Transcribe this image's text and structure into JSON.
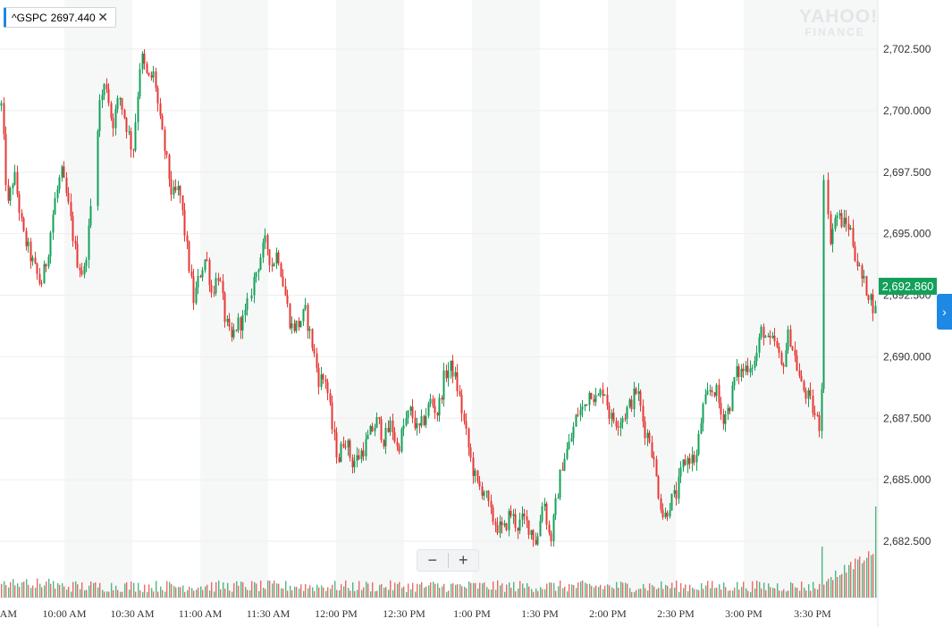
{
  "symbol": {
    "name": "^GSPC",
    "value": "2697.440",
    "close_glyph": "✕"
  },
  "watermark": {
    "line1": "YAHOO!",
    "line2": "FINANCE"
  },
  "current_price_label": "2,692.860",
  "side_button_glyph": "›",
  "zoom": {
    "minus": "−",
    "plus": "+"
  },
  "colors": {
    "up": "#14a05a",
    "down": "#e53935",
    "band": "#f6f7f7",
    "grid": "#eeeeee"
  },
  "chart_data": {
    "type": "candlestick",
    "ylim": [
      2681.1,
      2703.9
    ],
    "y_ticks": [
      {
        "v": 2702.5,
        "label": "2,702.500"
      },
      {
        "v": 2700.0,
        "label": "2,700.000"
      },
      {
        "v": 2697.5,
        "label": "2,697.500"
      },
      {
        "v": 2695.0,
        "label": "2,695.000"
      },
      {
        "v": 2692.5,
        "label": "2,692.500"
      },
      {
        "v": 2690.0,
        "label": "2,690.000"
      },
      {
        "v": 2687.5,
        "label": "2,687.500"
      },
      {
        "v": 2685.0,
        "label": "2,685.000"
      },
      {
        "v": 2682.5,
        "label": "2,682.500"
      }
    ],
    "x_ticks": [
      "AM",
      "10:00 AM",
      "10:30 AM",
      "11:00 AM",
      "11:30 AM",
      "12:00 PM",
      "12:30 PM",
      "1:00 PM",
      "1:30 PM",
      "2:00 PM",
      "2:30 PM",
      "3:00 PM",
      "3:30 PM"
    ],
    "price_path": [
      [
        0,
        2700.8
      ],
      [
        8,
        2696
      ],
      [
        15,
        2697.5
      ],
      [
        25,
        2695
      ],
      [
        36,
        2693.8
      ],
      [
        45,
        2692.9
      ],
      [
        52,
        2694
      ],
      [
        60,
        2696.2
      ],
      [
        68,
        2697.5
      ],
      [
        75,
        2696.3
      ],
      [
        85,
        2694
      ],
      [
        93,
        2693.3
      ],
      [
        100,
        2695.6
      ],
      [
        110,
        2700.2
      ],
      [
        118,
        2701.2
      ],
      [
        125,
        2699.4
      ],
      [
        133,
        2700.6
      ],
      [
        141,
        2699.4
      ],
      [
        148,
        2698.3
      ],
      [
        157,
        2702.3
      ],
      [
        165,
        2701.2
      ],
      [
        172,
        2701.5
      ],
      [
        178,
        2699.6
      ],
      [
        185,
        2698.1
      ],
      [
        192,
        2696.5
      ],
      [
        200,
        2696.8
      ],
      [
        208,
        2694.5
      ],
      [
        216,
        2692.3
      ],
      [
        224,
        2693.5
      ],
      [
        230,
        2694.1
      ],
      [
        236,
        2692.6
      ],
      [
        244,
        2693.4
      ],
      [
        251,
        2691.6
      ],
      [
        258,
        2690.6
      ],
      [
        264,
        2691.3
      ],
      [
        272,
        2691.5
      ],
      [
        278,
        2692.3
      ],
      [
        284,
        2693.2
      ],
      [
        290,
        2694
      ],
      [
        297,
        2694.7
      ],
      [
        303,
        2693.7
      ],
      [
        310,
        2694.3
      ],
      [
        317,
        2692.8
      ],
      [
        325,
        2691.2
      ],
      [
        333,
        2691.3
      ],
      [
        341,
        2691.8
      ],
      [
        349,
        2690.4
      ],
      [
        356,
        2689.1
      ],
      [
        364,
        2689.1
      ],
      [
        371,
        2687.1
      ],
      [
        378,
        2685.8
      ],
      [
        385,
        2686.8
      ],
      [
        393,
        2685.7
      ],
      [
        400,
        2685.9
      ],
      [
        408,
        2686.4
      ],
      [
        415,
        2687
      ],
      [
        422,
        2687.4
      ],
      [
        429,
        2686.6
      ],
      [
        437,
        2687.3
      ],
      [
        444,
        2686.2
      ],
      [
        452,
        2687.3
      ],
      [
        459,
        2687.8
      ],
      [
        467,
        2686.9
      ],
      [
        474,
        2687.5
      ],
      [
        481,
        2688.2
      ],
      [
        489,
        2687.7
      ],
      [
        497,
        2689.3
      ],
      [
        505,
        2689.6
      ],
      [
        512,
        2688.6
      ],
      [
        519,
        2687.2
      ],
      [
        527,
        2685.6
      ],
      [
        534,
        2684.7
      ],
      [
        541,
        2684.6
      ],
      [
        548,
        2683.6
      ],
      [
        556,
        2683.1
      ],
      [
        563,
        2682.9
      ],
      [
        570,
        2683.7
      ],
      [
        578,
        2683.1
      ],
      [
        585,
        2683.4
      ],
      [
        593,
        2683
      ],
      [
        600,
        2682.4
      ],
      [
        607,
        2684.4
      ],
      [
        615,
        2682.4
      ],
      [
        622,
        2684.2
      ],
      [
        629,
        2685.8
      ],
      [
        637,
        2686.5
      ],
      [
        645,
        2687.7
      ],
      [
        652,
        2687.9
      ],
      [
        660,
        2688.7
      ],
      [
        667,
        2688.2
      ],
      [
        675,
        2688.8
      ],
      [
        682,
        2687.5
      ],
      [
        690,
        2687.4
      ],
      [
        697,
        2687.6
      ],
      [
        705,
        2688.1
      ],
      [
        712,
        2688.7
      ],
      [
        720,
        2687.1
      ],
      [
        727,
        2686.6
      ],
      [
        735,
        2684.7
      ],
      [
        742,
        2683.4
      ],
      [
        749,
        2684.1
      ],
      [
        756,
        2684.4
      ],
      [
        764,
        2685.7
      ],
      [
        771,
        2685.9
      ],
      [
        778,
        2685.8
      ],
      [
        785,
        2687.8
      ],
      [
        793,
        2688.6
      ],
      [
        800,
        2688.7
      ],
      [
        807,
        2687.5
      ],
      [
        815,
        2687.9
      ],
      [
        822,
        2689.3
      ],
      [
        829,
        2689.4
      ],
      [
        837,
        2689.7
      ],
      [
        844,
        2689.8
      ],
      [
        852,
        2691.2
      ],
      [
        859,
        2690.5
      ],
      [
        866,
        2690.6
      ],
      [
        874,
        2689.5
      ],
      [
        882,
        2691
      ],
      [
        889,
        2689.9
      ],
      [
        896,
        2688.8
      ],
      [
        904,
        2688.3
      ],
      [
        911,
        2687.6
      ],
      [
        918,
        2687.1
      ],
      [
        921,
        2697.5
      ],
      [
        928,
        2694.8
      ],
      [
        935,
        2695.8
      ],
      [
        943,
        2695.4
      ],
      [
        950,
        2695.3
      ],
      [
        957,
        2694
      ],
      [
        964,
        2693.1
      ],
      [
        971,
        2692.6
      ],
      [
        979,
        2691.8
      ]
    ],
    "gaps": [
      [
        102,
        107
      ],
      [
        276,
        281
      ],
      [
        921,
        924
      ]
    ],
    "volume": {
      "base": 68,
      "max_bar_height": 170,
      "last_spike": 170
    }
  }
}
